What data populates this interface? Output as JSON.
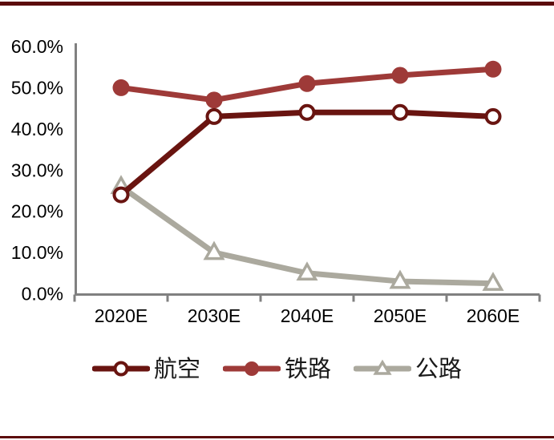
{
  "page": {
    "background": "#ffffff",
    "top_rule_color": "#5C0A0C",
    "bottom_rule_color": "#5C0A0C"
  },
  "chart_data": {
    "type": "line",
    "title": "",
    "xlabel": "",
    "ylabel": "",
    "categories": [
      "2020E",
      "2030E",
      "2040E",
      "2050E",
      "2060E"
    ],
    "series": [
      {
        "name": "航空",
        "slug": "aviation",
        "values": [
          24,
          43,
          44,
          44,
          43
        ],
        "color": "#691410",
        "marker": "open-circle"
      },
      {
        "name": "铁路",
        "slug": "railway",
        "values": [
          50,
          47,
          51,
          53,
          54.5
        ],
        "color": "#9E3A38",
        "marker": "filled-circle"
      },
      {
        "name": "公路",
        "slug": "highway",
        "values": [
          26,
          10,
          5,
          3,
          2.5
        ],
        "color": "#ABA99E",
        "marker": "open-triangle"
      }
    ],
    "ylim": [
      0,
      60
    ],
    "y_ticks": [
      "0.0%",
      "10.0%",
      "20.0%",
      "30.0%",
      "40.0%",
      "50.0%",
      "60.0%"
    ],
    "y_tick_values": [
      0,
      10,
      20,
      30,
      40,
      50,
      60
    ],
    "grid": false,
    "legend_position": "bottom",
    "axis_color": "#808080",
    "tick_label_color": "#000000",
    "marker_fill": "#ffffff"
  }
}
